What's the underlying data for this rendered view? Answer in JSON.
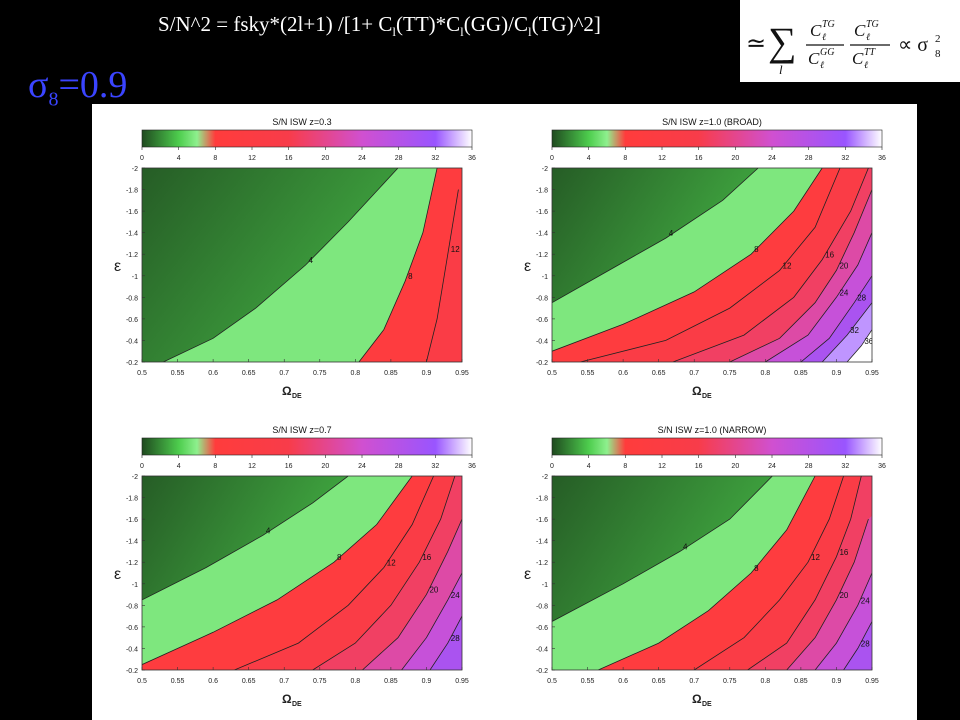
{
  "header": {
    "formula_parts": [
      "S/N^2 = fsky*(2l+1) /[1+ C",
      "l",
      "(TT)*C",
      "l",
      "(GG)/C",
      "l",
      "(TG)^2]"
    ],
    "approx_symbol": "≃",
    "approx_sum_symbol": "∑",
    "approx_sum_index": "l",
    "approx_terms": {
      "num1": "C",
      "num1_sub": "ℓ",
      "num1_sup": "TG",
      "den1": "C",
      "den1_sub": "ℓ",
      "den1_sup": "GG",
      "num2": "C",
      "num2_sub": "ℓ",
      "num2_sup": "TG",
      "den2": "C",
      "den2_sub": "ℓ",
      "den2_sup": "TT"
    },
    "approx_propto": "∝ σ",
    "approx_sigma_sub": "8",
    "approx_sigma_sup": "2",
    "sigma_symbol": "σ",
    "sigma_sub": "8",
    "sigma_value": "=0.9"
  },
  "colorbar": {
    "ticks": [
      0,
      4,
      8,
      12,
      16,
      20,
      24,
      28,
      32,
      36
    ],
    "colors": [
      {
        "v": 0,
        "c": "#1f4a1f"
      },
      {
        "v": 4,
        "c": "#4dcc4d"
      },
      {
        "v": 6,
        "c": "#8ef08e"
      },
      {
        "v": 8,
        "c": "#ff3c3c"
      },
      {
        "v": 16,
        "c": "#f83c4a"
      },
      {
        "v": 24,
        "c": "#d050d0"
      },
      {
        "v": 32,
        "c": "#9955ff"
      },
      {
        "v": 36,
        "c": "#ffffff"
      }
    ]
  },
  "chart_data": [
    {
      "type": "heatmap",
      "title": "S/N  ISW  z=0.3",
      "xlabel": "Ω",
      "xlabel_sub": "DE",
      "ylabel": "ε",
      "xlim": [
        0.5,
        0.95
      ],
      "ylim": [
        -2,
        -0.2
      ],
      "xticks": [
        "0.5",
        "0.55",
        "0.6",
        "0.65",
        "0.7",
        "0.75",
        "0.8",
        "0.85",
        "0.9",
        "0.95"
      ],
      "yticks": [
        "-2",
        "-1.8",
        "-1.6",
        "-1.4",
        "-1.2",
        "-1",
        "-0.8",
        "-0.6",
        "-0.4",
        "-0.2"
      ],
      "contours": [
        {
          "level": 4,
          "label": "4",
          "points": [
            [
              0.53,
              -0.2
            ],
            [
              0.6,
              -0.42
            ],
            [
              0.66,
              -0.7
            ],
            [
              0.73,
              -1.1
            ],
            [
              0.79,
              -1.5
            ],
            [
              0.86,
              -2.0
            ]
          ]
        },
        {
          "level": 8,
          "label": "8",
          "points": [
            [
              0.805,
              -0.2
            ],
            [
              0.84,
              -0.5
            ],
            [
              0.87,
              -0.95
            ],
            [
              0.895,
              -1.4
            ],
            [
              0.915,
              -2.0
            ]
          ]
        },
        {
          "level": 12,
          "label": "12",
          "points": [
            [
              0.9,
              -0.2
            ],
            [
              0.915,
              -0.6
            ],
            [
              0.93,
              -1.2
            ],
            [
              0.945,
              -1.8
            ]
          ]
        }
      ]
    },
    {
      "type": "heatmap",
      "title": "S/N  ISW  z=1.0 (BROAD)",
      "xlabel": "Ω",
      "xlabel_sub": "DE",
      "ylabel": "ε",
      "xlim": [
        0.5,
        0.95
      ],
      "ylim": [
        -2,
        -0.2
      ],
      "xticks": [
        "0.5",
        "0.55",
        "0.6",
        "0.65",
        "0.7",
        "0.75",
        "0.8",
        "0.85",
        "0.9",
        "0.95"
      ],
      "yticks": [
        "-2",
        "-1.8",
        "-1.6",
        "-1.4",
        "-1.2",
        "-1",
        "-0.8",
        "-0.6",
        "-0.4",
        "-0.2"
      ],
      "contours": [
        {
          "level": 4,
          "label": "4",
          "points": [
            [
              0.5,
              -0.75
            ],
            [
              0.58,
              -1.05
            ],
            [
              0.66,
              -1.35
            ],
            [
              0.74,
              -1.7
            ],
            [
              0.79,
              -2.0
            ]
          ]
        },
        {
          "level": 8,
          "label": "8",
          "points": [
            [
              0.5,
              -0.3
            ],
            [
              0.6,
              -0.55
            ],
            [
              0.7,
              -0.85
            ],
            [
              0.78,
              -1.2
            ],
            [
              0.84,
              -1.6
            ],
            [
              0.88,
              -2.0
            ]
          ]
        },
        {
          "level": 12,
          "label": "12",
          "points": [
            [
              0.54,
              -0.2
            ],
            [
              0.66,
              -0.4
            ],
            [
              0.75,
              -0.7
            ],
            [
              0.82,
              -1.05
            ],
            [
              0.87,
              -1.45
            ],
            [
              0.905,
              -2.0
            ]
          ]
        },
        {
          "level": 16,
          "label": "16",
          "points": [
            [
              0.67,
              -0.2
            ],
            [
              0.77,
              -0.45
            ],
            [
              0.84,
              -0.8
            ],
            [
              0.88,
              -1.15
            ],
            [
              0.92,
              -1.6
            ],
            [
              0.945,
              -2.0
            ]
          ]
        },
        {
          "level": 20,
          "label": "20",
          "points": [
            [
              0.75,
              -0.2
            ],
            [
              0.82,
              -0.42
            ],
            [
              0.87,
              -0.75
            ],
            [
              0.9,
              -1.05
            ],
            [
              0.925,
              -1.4
            ],
            [
              0.95,
              -1.8
            ]
          ]
        },
        {
          "level": 24,
          "label": "24",
          "points": [
            [
              0.8,
              -0.2
            ],
            [
              0.86,
              -0.45
            ],
            [
              0.9,
              -0.8
            ],
            [
              0.93,
              -1.1
            ],
            [
              0.95,
              -1.4
            ]
          ]
        },
        {
          "level": 28,
          "label": "28",
          "points": [
            [
              0.85,
              -0.2
            ],
            [
              0.89,
              -0.42
            ],
            [
              0.925,
              -0.75
            ],
            [
              0.95,
              -1.0
            ]
          ]
        },
        {
          "level": 32,
          "label": "32",
          "points": [
            [
              0.88,
              -0.2
            ],
            [
              0.915,
              -0.45
            ],
            [
              0.95,
              -0.75
            ]
          ]
        },
        {
          "level": 36,
          "label": "36",
          "points": [
            [
              0.915,
              -0.2
            ],
            [
              0.935,
              -0.35
            ],
            [
              0.95,
              -0.5
            ]
          ]
        }
      ]
    },
    {
      "type": "heatmap",
      "title": "S/N  ISW  z=0.7",
      "xlabel": "Ω",
      "xlabel_sub": "DE",
      "ylabel": "ε",
      "xlim": [
        0.5,
        0.95
      ],
      "ylim": [
        -2,
        -0.2
      ],
      "xticks": [
        "0.5",
        "0.55",
        "0.6",
        "0.65",
        "0.7",
        "0.75",
        "0.8",
        "0.85",
        "0.9",
        "0.95"
      ],
      "yticks": [
        "-2",
        "-1.8",
        "-1.6",
        "-1.4",
        "-1.2",
        "-1",
        "-0.8",
        "-0.6",
        "-0.4",
        "-0.2"
      ],
      "contours": [
        {
          "level": 4,
          "label": "4",
          "points": [
            [
              0.5,
              -0.85
            ],
            [
              0.59,
              -1.15
            ],
            [
              0.67,
              -1.45
            ],
            [
              0.74,
              -1.75
            ],
            [
              0.79,
              -2.0
            ]
          ]
        },
        {
          "level": 8,
          "label": "8",
          "points": [
            [
              0.5,
              -0.25
            ],
            [
              0.6,
              -0.55
            ],
            [
              0.69,
              -0.85
            ],
            [
              0.77,
              -1.2
            ],
            [
              0.83,
              -1.55
            ],
            [
              0.88,
              -2.0
            ]
          ]
        },
        {
          "level": 12,
          "label": "12",
          "points": [
            [
              0.63,
              -0.2
            ],
            [
              0.72,
              -0.45
            ],
            [
              0.79,
              -0.8
            ],
            [
              0.84,
              -1.15
            ],
            [
              0.88,
              -1.55
            ],
            [
              0.91,
              -2.0
            ]
          ]
        },
        {
          "level": 16,
          "label": "16",
          "points": [
            [
              0.74,
              -0.2
            ],
            [
              0.8,
              -0.45
            ],
            [
              0.85,
              -0.8
            ],
            [
              0.89,
              -1.2
            ],
            [
              0.92,
              -1.6
            ],
            [
              0.94,
              -2.0
            ]
          ]
        },
        {
          "level": 20,
          "label": "20",
          "points": [
            [
              0.81,
              -0.2
            ],
            [
              0.86,
              -0.5
            ],
            [
              0.9,
              -0.9
            ],
            [
              0.93,
              -1.3
            ],
            [
              0.95,
              -1.6
            ]
          ]
        },
        {
          "level": 24,
          "label": "24",
          "points": [
            [
              0.865,
              -0.2
            ],
            [
              0.9,
              -0.5
            ],
            [
              0.93,
              -0.85
            ],
            [
              0.95,
              -1.1
            ]
          ]
        },
        {
          "level": 28,
          "label": "28",
          "points": [
            [
              0.905,
              -0.2
            ],
            [
              0.93,
              -0.45
            ],
            [
              0.95,
              -0.7
            ]
          ]
        }
      ]
    },
    {
      "type": "heatmap",
      "title": "S/N  ISW  z=1.0 (NARROW)",
      "xlabel": "Ω",
      "xlabel_sub": "DE",
      "ylabel": "ε",
      "xlim": [
        0.5,
        0.95
      ],
      "ylim": [
        -2,
        -0.2
      ],
      "xticks": [
        "0.5",
        "0.55",
        "0.6",
        "0.65",
        "0.7",
        "0.75",
        "0.8",
        "0.85",
        "0.9",
        "0.95"
      ],
      "yticks": [
        "-2",
        "-1.8",
        "-1.6",
        "-1.4",
        "-1.2",
        "-1",
        "-0.8",
        "-0.6",
        "-0.4",
        "-0.2"
      ],
      "contours": [
        {
          "level": 4,
          "label": "4",
          "points": [
            [
              0.5,
              -0.65
            ],
            [
              0.6,
              -1.0
            ],
            [
              0.68,
              -1.3
            ],
            [
              0.75,
              -1.6
            ],
            [
              0.81,
              -2.0
            ]
          ]
        },
        {
          "level": 8,
          "label": "8",
          "points": [
            [
              0.565,
              -0.2
            ],
            [
              0.65,
              -0.45
            ],
            [
              0.72,
              -0.75
            ],
            [
              0.78,
              -1.1
            ],
            [
              0.83,
              -1.5
            ],
            [
              0.87,
              -2.0
            ]
          ]
        },
        {
          "level": 12,
          "label": "12",
          "points": [
            [
              0.7,
              -0.2
            ],
            [
              0.77,
              -0.5
            ],
            [
              0.82,
              -0.85
            ],
            [
              0.86,
              -1.2
            ],
            [
              0.89,
              -1.6
            ],
            [
              0.91,
              -2.0
            ]
          ]
        },
        {
          "level": 16,
          "label": "16",
          "points": [
            [
              0.775,
              -0.2
            ],
            [
              0.83,
              -0.45
            ],
            [
              0.87,
              -0.85
            ],
            [
              0.9,
              -1.25
            ],
            [
              0.92,
              -1.6
            ],
            [
              0.935,
              -2.0
            ]
          ]
        },
        {
          "level": 20,
          "label": "20",
          "points": [
            [
              0.83,
              -0.2
            ],
            [
              0.87,
              -0.5
            ],
            [
              0.9,
              -0.85
            ],
            [
              0.925,
              -1.2
            ],
            [
              0.945,
              -1.6
            ]
          ]
        },
        {
          "level": 24,
          "label": "24",
          "points": [
            [
              0.87,
              -0.2
            ],
            [
              0.9,
              -0.45
            ],
            [
              0.93,
              -0.8
            ],
            [
              0.95,
              -1.1
            ]
          ]
        },
        {
          "level": 28,
          "label": "28",
          "points": [
            [
              0.91,
              -0.2
            ],
            [
              0.93,
              -0.4
            ],
            [
              0.95,
              -0.65
            ]
          ]
        }
      ]
    }
  ]
}
